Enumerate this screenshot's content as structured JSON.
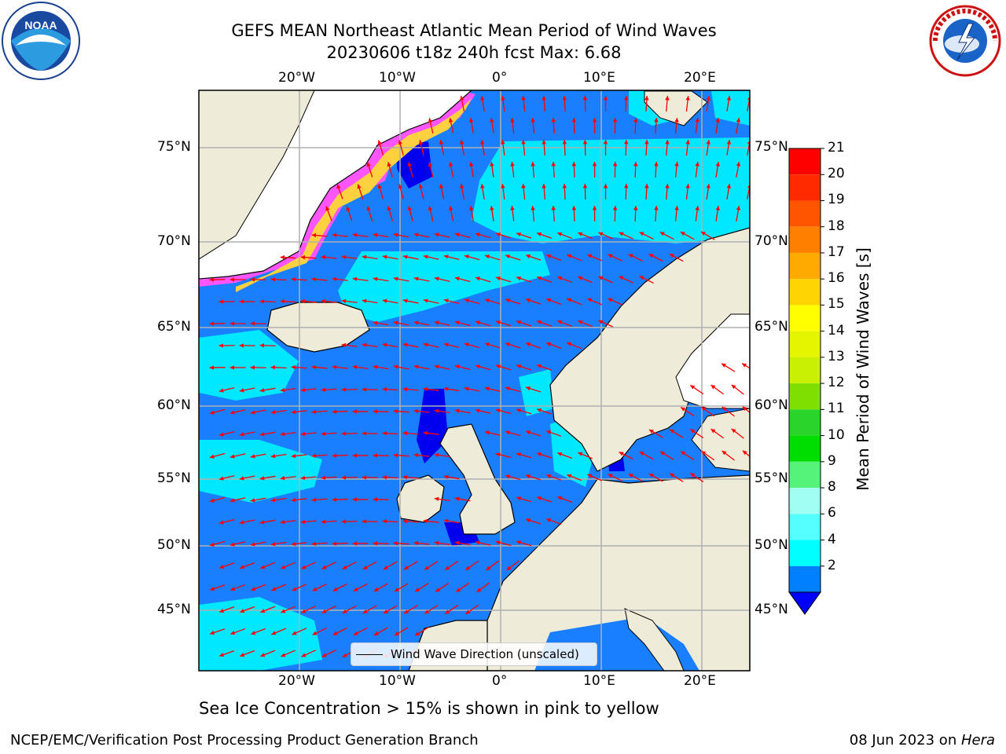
{
  "title": {
    "line1": "GEFS MEAN Northeast Atlantic Mean Period of Wind Waves",
    "line2": "20230606 t18z 240h fcst   Max: 6.68"
  },
  "axes": {
    "lon_labels": [
      "20°W",
      "10°W",
      "0°",
      "10°E",
      "20°E"
    ],
    "lat_labels": [
      "75°N",
      "70°N",
      "65°N",
      "60°N",
      "55°N",
      "50°N",
      "45°N"
    ]
  },
  "colorbar": {
    "title": "Mean Period of Wind Waves [s]",
    "ticks": [
      "21",
      "20",
      "19",
      "18",
      "17",
      "16",
      "15",
      "14",
      "13",
      "12",
      "11",
      "10",
      "9",
      "8",
      "6",
      "4",
      "2"
    ],
    "colors": [
      "#ff0000",
      "#ff2a00",
      "#ff5500",
      "#ff7f00",
      "#ffaa00",
      "#ffd400",
      "#ffff00",
      "#e5f500",
      "#c8f000",
      "#7fe000",
      "#2bd42b",
      "#00dd00",
      "#55f37a",
      "#a0fff2",
      "#55ffff",
      "#00ffff",
      "#0080ff"
    ],
    "extend_color": "#0000ff"
  },
  "legend": {
    "label": "Wind Wave Direction (unscaled)"
  },
  "subtitle": "Sea Ice Concentration > 15% is shown in pink to yellow",
  "footer": {
    "left": "NCEP/EMC/Verification Post Processing Product Generation Branch",
    "right_date": "08 Jun 2023 on ",
    "right_host": "Hera"
  },
  "logos": {
    "left": "noaa-logo",
    "right": "national-weather-service-logo"
  },
  "map_colors": {
    "land": "#efebd9",
    "ocean_low": "#1a7fff",
    "ocean_mid": "#00e8ff",
    "ocean_min": "#0000ee",
    "ice_pink": "#ff55ff",
    "ice_yellow": "#ffe030",
    "arrow": "#ff0000",
    "grid": "#b0b0b0"
  }
}
